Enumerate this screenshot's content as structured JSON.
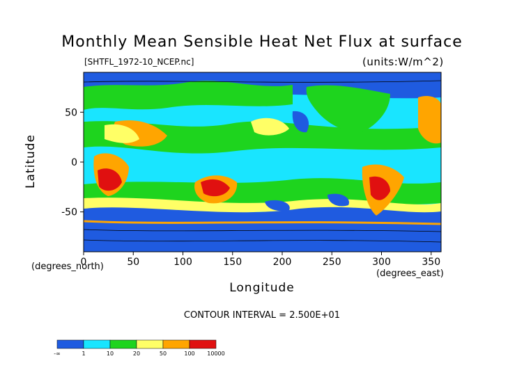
{
  "chart_data": {
    "type": "heatmap",
    "title": "Monthly Mean Sensible Heat Net Flux at surface",
    "subtitle_left": "[SHTFL_1972-10_NCEP.nc]",
    "subtitle_right": "(units:W/m^2)",
    "xlabel": "Longitude",
    "ylabel": "Latitude",
    "x_units": "(degrees_east)",
    "y_units": "(degrees_north)",
    "xlim": [
      0,
      360
    ],
    "ylim": [
      -90,
      90
    ],
    "x_ticks": [
      0,
      50,
      100,
      150,
      200,
      250,
      300,
      350
    ],
    "y_ticks": [
      50,
      0,
      -50
    ],
    "contour_interval": "CONTOUR INTERVAL = 2.500E+01",
    "colorbar": {
      "labels": [
        "-∞",
        "1",
        "10",
        "20",
        "50",
        "100",
        "10000"
      ],
      "colors": [
        "#1f5be0",
        "#19e5ff",
        "#1ed41e",
        "#ffff66",
        "#ffa500",
        "#e01010"
      ]
    }
  }
}
